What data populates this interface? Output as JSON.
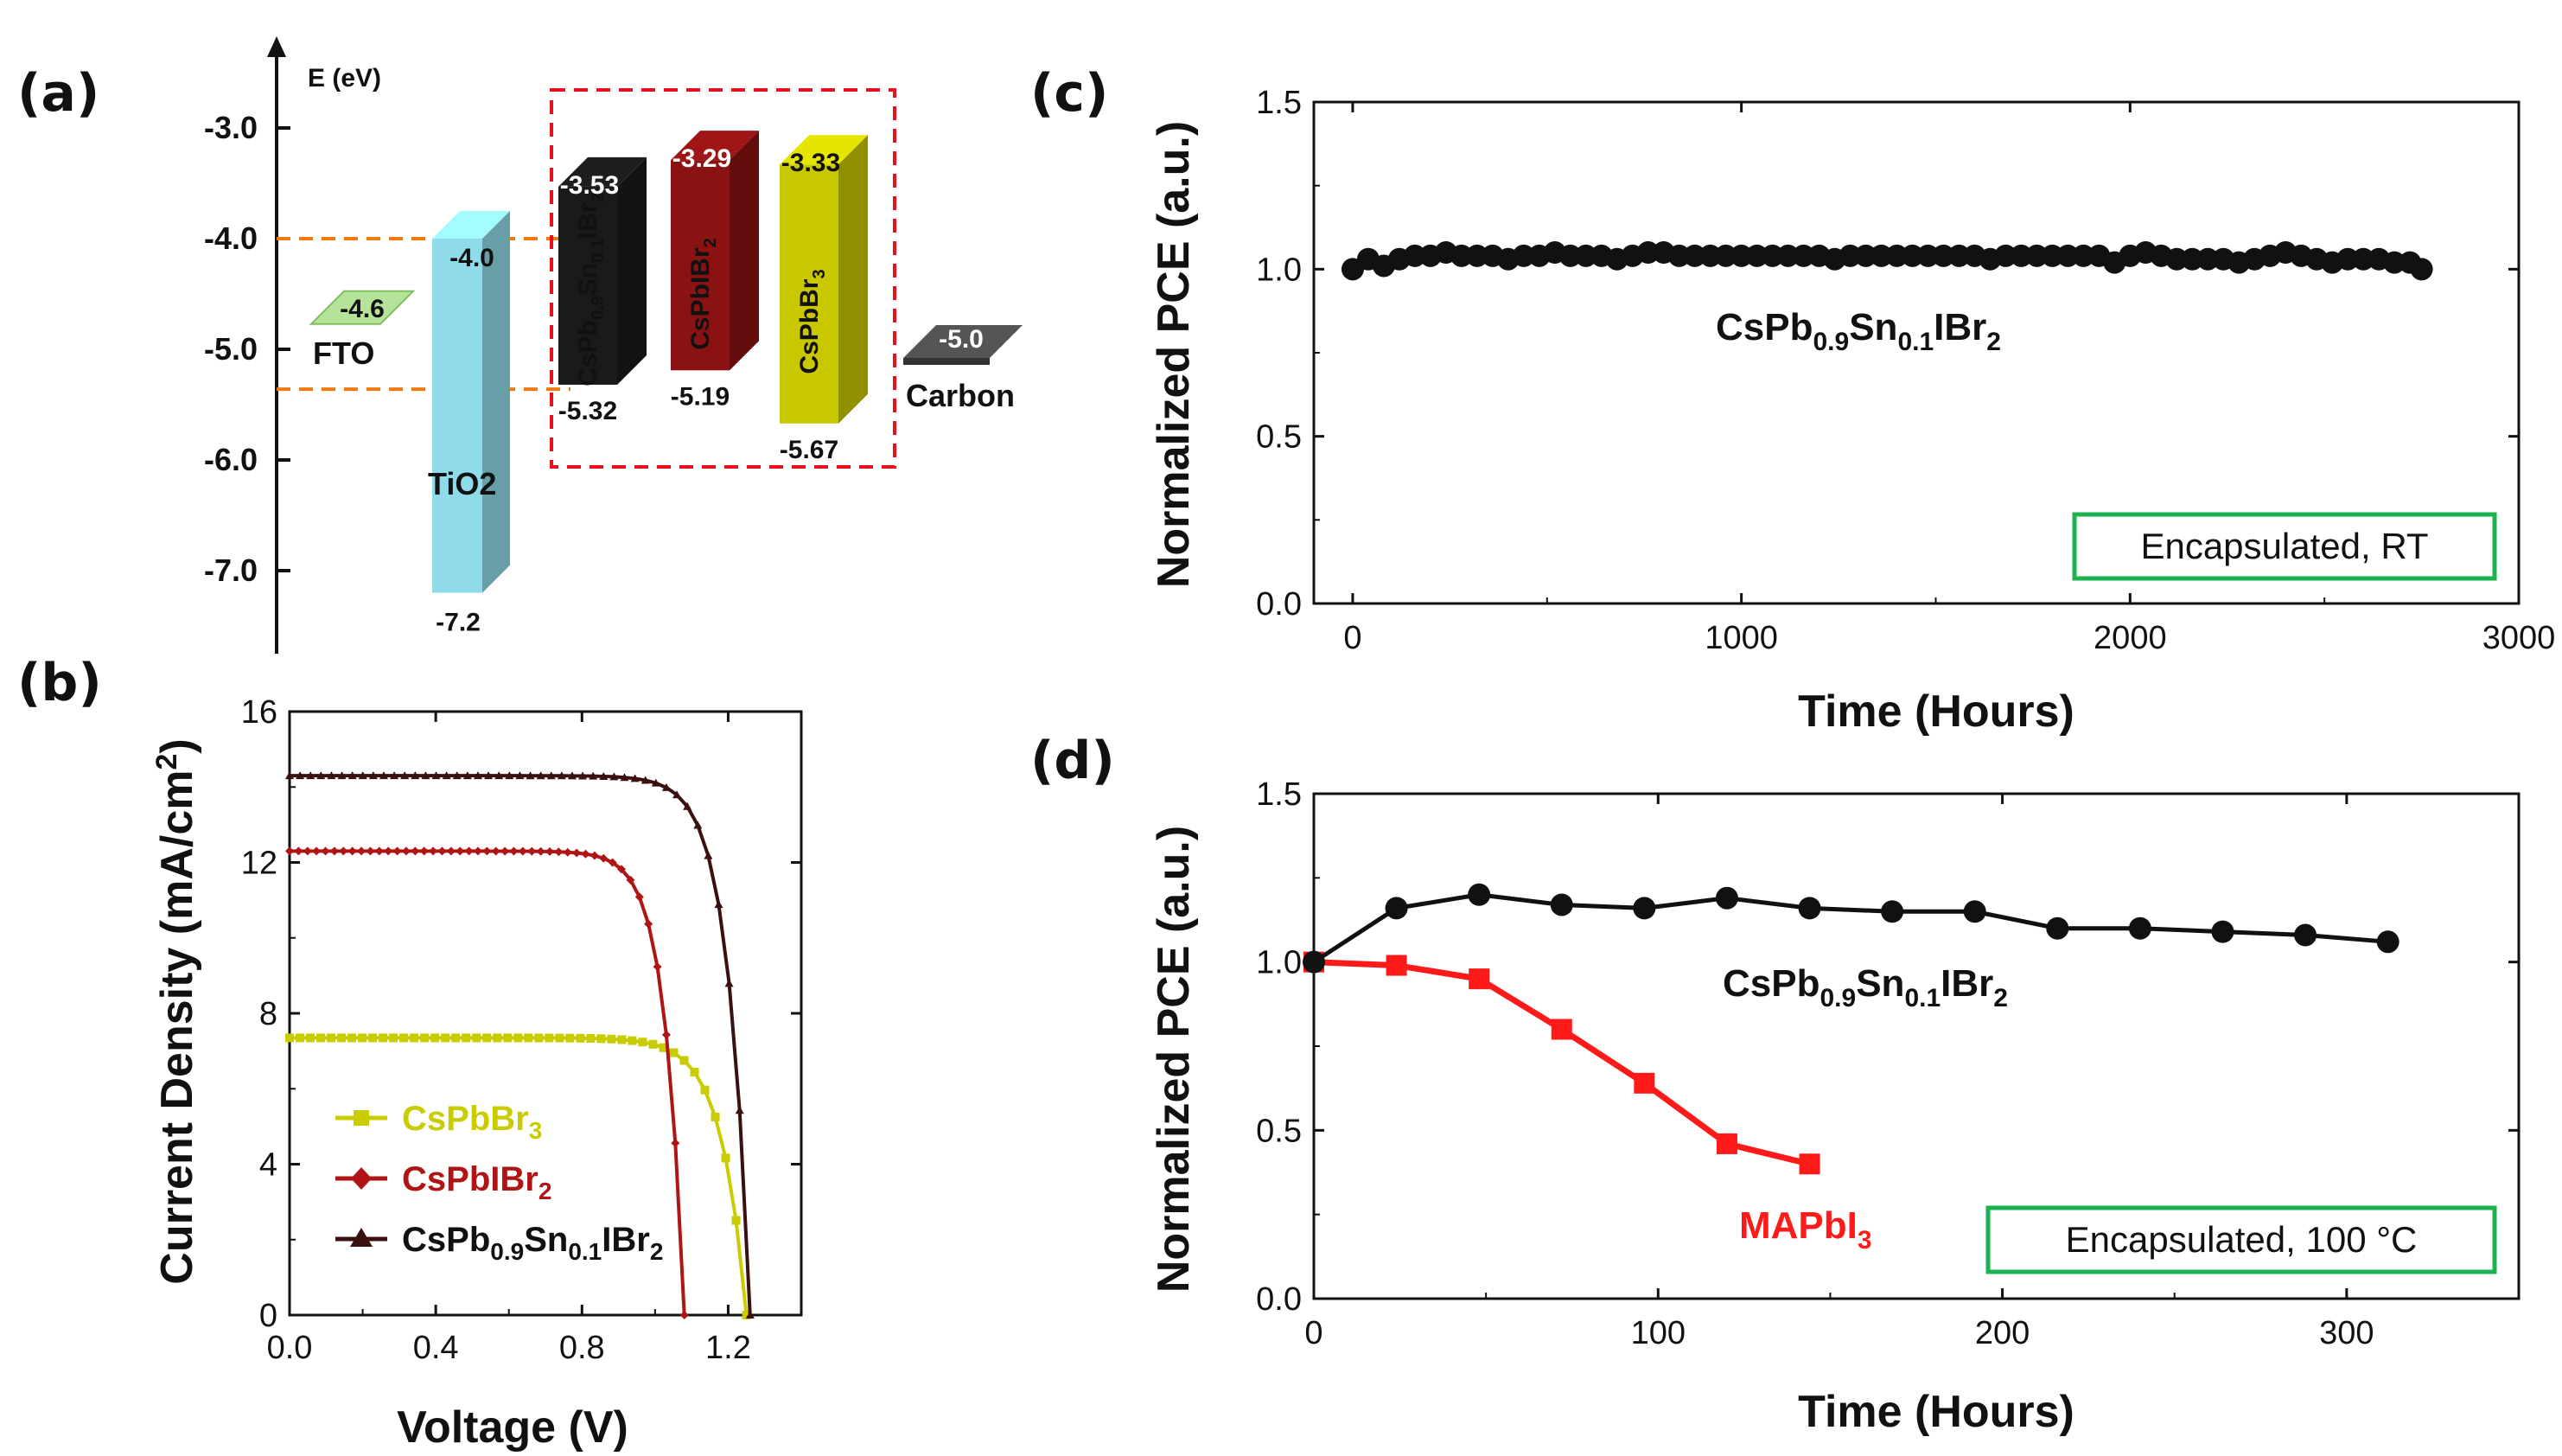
{
  "panels": {
    "a": {
      "label": "(a)"
    },
    "b": {
      "label": "(b)"
    },
    "c": {
      "label": "(c)"
    },
    "d": {
      "label": "(d)"
    }
  },
  "colors": {
    "black_series": "#111111",
    "red_series": "#ff1a1a",
    "ivr_yellow": "#c8cc00",
    "ivr_red": "#b01515",
    "ivr_black": "#3a1010",
    "encaps_box": "#1cb24f",
    "band_dashed_orange": "#f07a10",
    "group_box_red": "#e8101e"
  },
  "chart_data": [
    {
      "panel": "a",
      "type": "band-diagram",
      "ylabel": "E (eV)",
      "yticks": [
        "-3.0",
        "-4.0",
        "-5.0",
        "-6.0",
        "-7.0"
      ],
      "ylim": [
        -7.6,
        -2.2
      ],
      "layers": [
        {
          "name": "FTO",
          "top": "-4.6",
          "top_value": -4.6,
          "bottom": "",
          "color": "#b5e39a",
          "thin": true
        },
        {
          "name": "TiO2",
          "top": "-4.0",
          "top_value": -4.0,
          "bottom": "-7.2",
          "bottom_value": -7.2,
          "color": "#8fdbe9"
        },
        {
          "name": "CsPb0.9Sn0.1IBr2",
          "top": "-3.53",
          "top_value": -3.53,
          "bottom": "-5.32",
          "bottom_value": -5.32,
          "color": "#1a1a1a"
        },
        {
          "name": "CsPbIBr2",
          "top": "-3.29",
          "top_value": -3.29,
          "bottom": "-5.19",
          "bottom_value": -5.19,
          "color": "#8b1212"
        },
        {
          "name": "CsPbBr3",
          "top": "-3.33",
          "top_value": -3.33,
          "bottom": "-5.67",
          "bottom_value": -5.67,
          "color": "#c8c700"
        },
        {
          "name": "Carbon",
          "top": "-5.0",
          "top_value": -5.0,
          "bottom": "",
          "color": "#555555",
          "thin": true
        }
      ],
      "dashed_lines": [
        -4.0,
        -5.36
      ]
    },
    {
      "panel": "b",
      "type": "line",
      "xlabel": "Voltage (V)",
      "ylabel": "Current Density (mA/cm²)",
      "xlim": [
        0.0,
        1.4
      ],
      "ylim": [
        0,
        16
      ],
      "xticks": [
        "0.0",
        "0.4",
        "0.8",
        "1.2"
      ],
      "xtick_values": [
        0.0,
        0.4,
        0.8,
        1.2
      ],
      "yticks": [
        "0",
        "4",
        "8",
        "12",
        "16"
      ],
      "ytick_values": [
        0,
        4,
        8,
        12,
        16
      ],
      "legend_position": "bottom-left",
      "series": [
        {
          "name": "CsPbBr3",
          "color": "#c8cc00",
          "marker": "square",
          "jsc": 7.35,
          "voc": 1.25,
          "n": 0.068
        },
        {
          "name": "CsPbIBr2",
          "color": "#b01515",
          "marker": "diamond",
          "jsc": 12.3,
          "voc": 1.08,
          "n": 0.053
        },
        {
          "name": "CsPb0.9Sn0.1IBr2",
          "color": "#3a1010",
          "marker": "triangle",
          "jsc": 14.3,
          "voc": 1.26,
          "n": 0.06
        }
      ]
    },
    {
      "panel": "c",
      "type": "line",
      "xlabel": "Time (Hours)",
      "ylabel": "Normalized PCE (a.u.)",
      "xlim": [
        -100,
        3000
      ],
      "ylim": [
        0.0,
        1.5
      ],
      "xticks": [
        "0",
        "1000",
        "2000",
        "3000"
      ],
      "xtick_values": [
        0,
        1000,
        2000,
        3000
      ],
      "yticks": [
        "0.0",
        "0.5",
        "1.0",
        "1.5"
      ],
      "ytick_values": [
        0.0,
        0.5,
        1.0,
        1.5
      ],
      "annotation_box": "Encapsulated, RT",
      "series": [
        {
          "name": "CsPb0.9Sn0.1IBr2",
          "color": "#111111",
          "marker": "circle",
          "x": [
            0,
            40,
            80,
            120,
            160,
            200,
            240,
            280,
            320,
            360,
            400,
            440,
            480,
            520,
            560,
            600,
            640,
            680,
            720,
            760,
            800,
            840,
            880,
            920,
            960,
            1000,
            1040,
            1080,
            1120,
            1160,
            1200,
            1240,
            1280,
            1320,
            1360,
            1400,
            1440,
            1480,
            1520,
            1560,
            1600,
            1640,
            1680,
            1720,
            1760,
            1800,
            1840,
            1880,
            1920,
            1960,
            2000,
            2040,
            2080,
            2120,
            2160,
            2200,
            2240,
            2280,
            2320,
            2360,
            2400,
            2440,
            2480,
            2520,
            2560,
            2600,
            2640,
            2680,
            2720,
            2750
          ],
          "y": [
            1.0,
            1.03,
            1.01,
            1.03,
            1.04,
            1.04,
            1.05,
            1.04,
            1.04,
            1.04,
            1.03,
            1.04,
            1.04,
            1.05,
            1.04,
            1.04,
            1.04,
            1.03,
            1.04,
            1.05,
            1.05,
            1.04,
            1.04,
            1.04,
            1.04,
            1.04,
            1.04,
            1.04,
            1.04,
            1.04,
            1.04,
            1.03,
            1.04,
            1.04,
            1.04,
            1.04,
            1.04,
            1.04,
            1.04,
            1.04,
            1.04,
            1.03,
            1.04,
            1.04,
            1.04,
            1.04,
            1.04,
            1.04,
            1.04,
            1.02,
            1.04,
            1.05,
            1.04,
            1.03,
            1.03,
            1.03,
            1.03,
            1.02,
            1.03,
            1.04,
            1.05,
            1.04,
            1.03,
            1.02,
            1.03,
            1.03,
            1.03,
            1.02,
            1.02,
            1.0
          ]
        }
      ]
    },
    {
      "panel": "d",
      "type": "line",
      "xlabel": "Time (Hours)",
      "ylabel": "Normalized PCE (a.u.)",
      "xlim": [
        0,
        350
      ],
      "ylim": [
        0.0,
        1.5
      ],
      "xticks": [
        "0",
        "100",
        "200",
        "300"
      ],
      "xtick_values": [
        0,
        100,
        200,
        300
      ],
      "yticks": [
        "0.0",
        "0.5",
        "1.0",
        "1.5"
      ],
      "ytick_values": [
        0.0,
        0.5,
        1.0,
        1.5
      ],
      "annotation_box": "Encapsulated, 100 °C",
      "series": [
        {
          "name": "CsPb0.9Sn0.1IBr2",
          "color": "#111111",
          "marker": "circle",
          "x": [
            0,
            24,
            48,
            72,
            96,
            120,
            144,
            168,
            192,
            216,
            240,
            264,
            288,
            312
          ],
          "y": [
            1.0,
            1.16,
            1.2,
            1.17,
            1.16,
            1.19,
            1.16,
            1.15,
            1.15,
            1.1,
            1.1,
            1.09,
            1.08,
            1.06
          ]
        },
        {
          "name": "MAPbI3",
          "color": "#ff1a1a",
          "marker": "square",
          "x": [
            0,
            24,
            48,
            72,
            96,
            120,
            144
          ],
          "y": [
            1.0,
            0.99,
            0.95,
            0.8,
            0.64,
            0.46,
            0.4
          ]
        }
      ]
    }
  ]
}
